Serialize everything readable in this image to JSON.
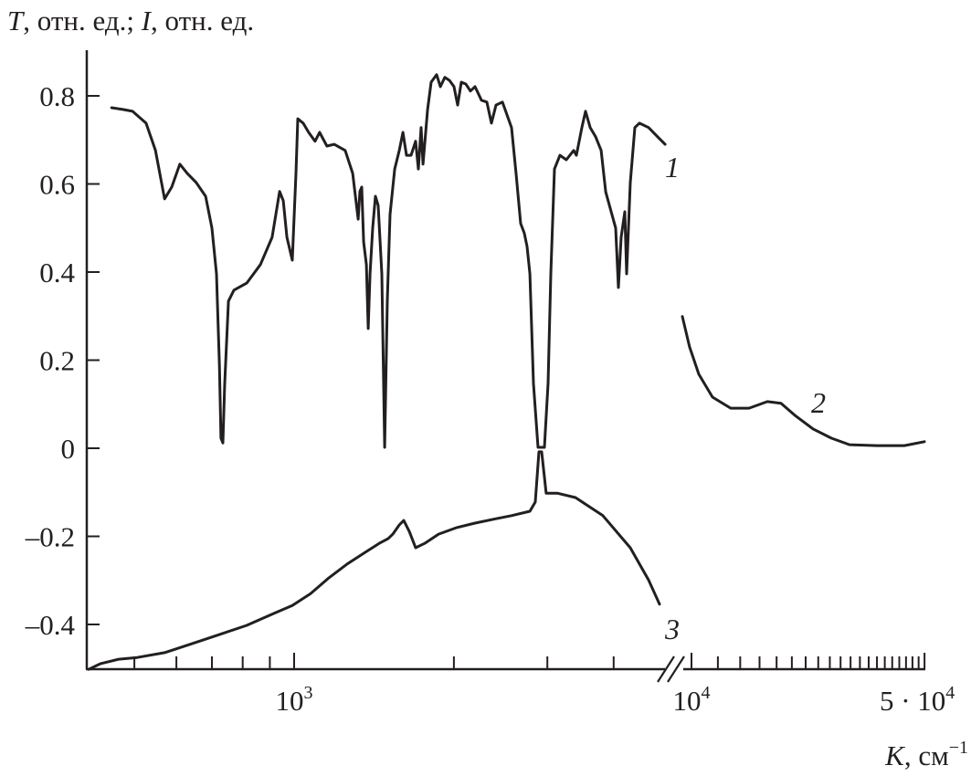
{
  "chart_data": {
    "type": "line",
    "title": "",
    "ylabel": {
      "var1": "T",
      "unit1": ", отн. ед.; ",
      "var2": "I",
      "unit2": ", отн. ед."
    },
    "xlabel": {
      "var": "K",
      "unit": ", см",
      "exp": "−1"
    },
    "x_scale": "log, broken axis",
    "x_segments": [
      [
        410,
        5130
      ],
      [
        9390,
        50000
      ]
    ],
    "ylim": [
      -0.5,
      0.9
    ],
    "grid": false,
    "y_ticks": [
      {
        "value": 0.8,
        "label": "0.8"
      },
      {
        "value": 0.6,
        "label": "0.6"
      },
      {
        "value": 0.4,
        "label": "0.4"
      },
      {
        "value": 0.2,
        "label": "0.2"
      },
      {
        "value": 0,
        "label": "0"
      },
      {
        "value": -0.2,
        "label": "–0.2"
      },
      {
        "value": -0.4,
        "label": "–0.4"
      }
    ],
    "x_tick_labels": [
      {
        "value": 1000,
        "base": "10",
        "exp": "3"
      },
      {
        "value": 10000,
        "base": "10",
        "exp": "4"
      },
      {
        "value": 50000,
        "base": "5 · 10",
        "exp": "4"
      }
    ],
    "x_minor_ticks": [
      500,
      600,
      700,
      800,
      900,
      1000,
      2000,
      3000,
      4000,
      10000,
      12000,
      14000,
      16000,
      18000,
      20000,
      22000,
      24000,
      26000,
      28000,
      30000,
      32000,
      34000,
      36000,
      38000,
      40000,
      42000,
      44000,
      46000,
      48000,
      50000
    ],
    "series": [
      {
        "name": "1",
        "color": "#231f20",
        "x": [
          453,
          477,
          496,
          526,
          548,
          570,
          588,
          609,
          629,
          654,
          681,
          700,
          714,
          723,
          728,
          734,
          740,
          752,
          770,
          814,
          864,
          909,
          939,
          954,
          969,
          992,
          1008,
          1016,
          1040,
          1065,
          1095,
          1117,
          1153,
          1190,
          1248,
          1289,
          1320,
          1330,
          1341,
          1352,
          1368,
          1379,
          1390,
          1406,
          1423,
          1440,
          1463,
          1481,
          1498,
          1516,
          1547,
          1578,
          1603,
          1628,
          1661,
          1694,
          1714,
          1735,
          1749,
          1784,
          1812,
          1856,
          1886,
          1923,
          1962,
          2001,
          2033,
          2065,
          2106,
          2149,
          2192,
          2254,
          2308,
          2354,
          2401,
          2468,
          2568,
          2619,
          2672,
          2714,
          2747,
          2781,
          2824,
          2881,
          2962,
          3009,
          3045,
          3094,
          3169,
          3258,
          3363,
          3403,
          3430,
          3485,
          3541,
          3612,
          3699,
          3788,
          3864,
          3941,
          4035,
          4083,
          4132,
          4198,
          4231,
          4299,
          4385,
          4473,
          4654,
          4842,
          5000
        ],
        "y": [
          0.773,
          0.769,
          0.765,
          0.738,
          0.676,
          0.566,
          0.593,
          0.645,
          0.624,
          0.603,
          0.572,
          0.5,
          0.396,
          0.189,
          0.023,
          0.012,
          0.147,
          0.334,
          0.359,
          0.375,
          0.417,
          0.479,
          0.583,
          0.562,
          0.479,
          0.427,
          0.624,
          0.748,
          0.738,
          0.717,
          0.697,
          0.717,
          0.686,
          0.69,
          0.676,
          0.624,
          0.52,
          0.583,
          0.593,
          0.468,
          0.417,
          0.272,
          0.396,
          0.5,
          0.572,
          0.551,
          0.396,
          0.002,
          0.334,
          0.531,
          0.634,
          0.676,
          0.717,
          0.665,
          0.665,
          0.697,
          0.634,
          0.728,
          0.645,
          0.769,
          0.831,
          0.848,
          0.821,
          0.842,
          0.835,
          0.821,
          0.779,
          0.831,
          0.827,
          0.811,
          0.821,
          0.79,
          0.786,
          0.738,
          0.779,
          0.786,
          0.728,
          0.625,
          0.51,
          0.489,
          0.458,
          0.396,
          0.147,
          0.002,
          0.002,
          0.147,
          0.396,
          0.634,
          0.665,
          0.655,
          0.676,
          0.665,
          0.686,
          0.728,
          0.765,
          0.728,
          0.707,
          0.676,
          0.582,
          0.545,
          0.5,
          0.365,
          0.479,
          0.537,
          0.396,
          0.603,
          0.728,
          0.738,
          0.728,
          0.707,
          0.69
        ]
      },
      {
        "name": "2",
        "color": "#231f20",
        "x": [
          9390,
          9870,
          10520,
          11560,
          13110,
          14880,
          16890,
          18560,
          20400,
          23140,
          26260,
          29790,
          35980,
          43480,
          49950
        ],
        "y": [
          0.299,
          0.23,
          0.168,
          0.116,
          0.091,
          0.091,
          0.106,
          0.102,
          0.075,
          0.044,
          0.023,
          0.008,
          0.006,
          0.006,
          0.015
        ]
      },
      {
        "name": "3",
        "color": "#231f20",
        "x": [
          410,
          432,
          467,
          506,
          570,
          641,
          723,
          814,
          916,
          992,
          1074,
          1163,
          1258,
          1362,
          1446,
          1504,
          1534,
          1578,
          1609,
          1648,
          1694,
          1762,
          1871,
          2025,
          2192,
          2401,
          2568,
          2781,
          2847,
          2893,
          2927,
          2985,
          3131,
          3390,
          3818,
          4299,
          4654,
          4881
        ],
        "y": [
          -0.502,
          -0.489,
          -0.479,
          -0.475,
          -0.464,
          -0.444,
          -0.423,
          -0.402,
          -0.375,
          -0.357,
          -0.33,
          -0.294,
          -0.263,
          -0.236,
          -0.216,
          -0.205,
          -0.195,
          -0.174,
          -0.164,
          -0.189,
          -0.226,
          -0.216,
          -0.195,
          -0.18,
          -0.17,
          -0.16,
          -0.153,
          -0.143,
          -0.122,
          -0.008,
          -0.008,
          -0.102,
          -0.102,
          -0.112,
          -0.153,
          -0.226,
          -0.299,
          -0.354
        ]
      }
    ]
  }
}
